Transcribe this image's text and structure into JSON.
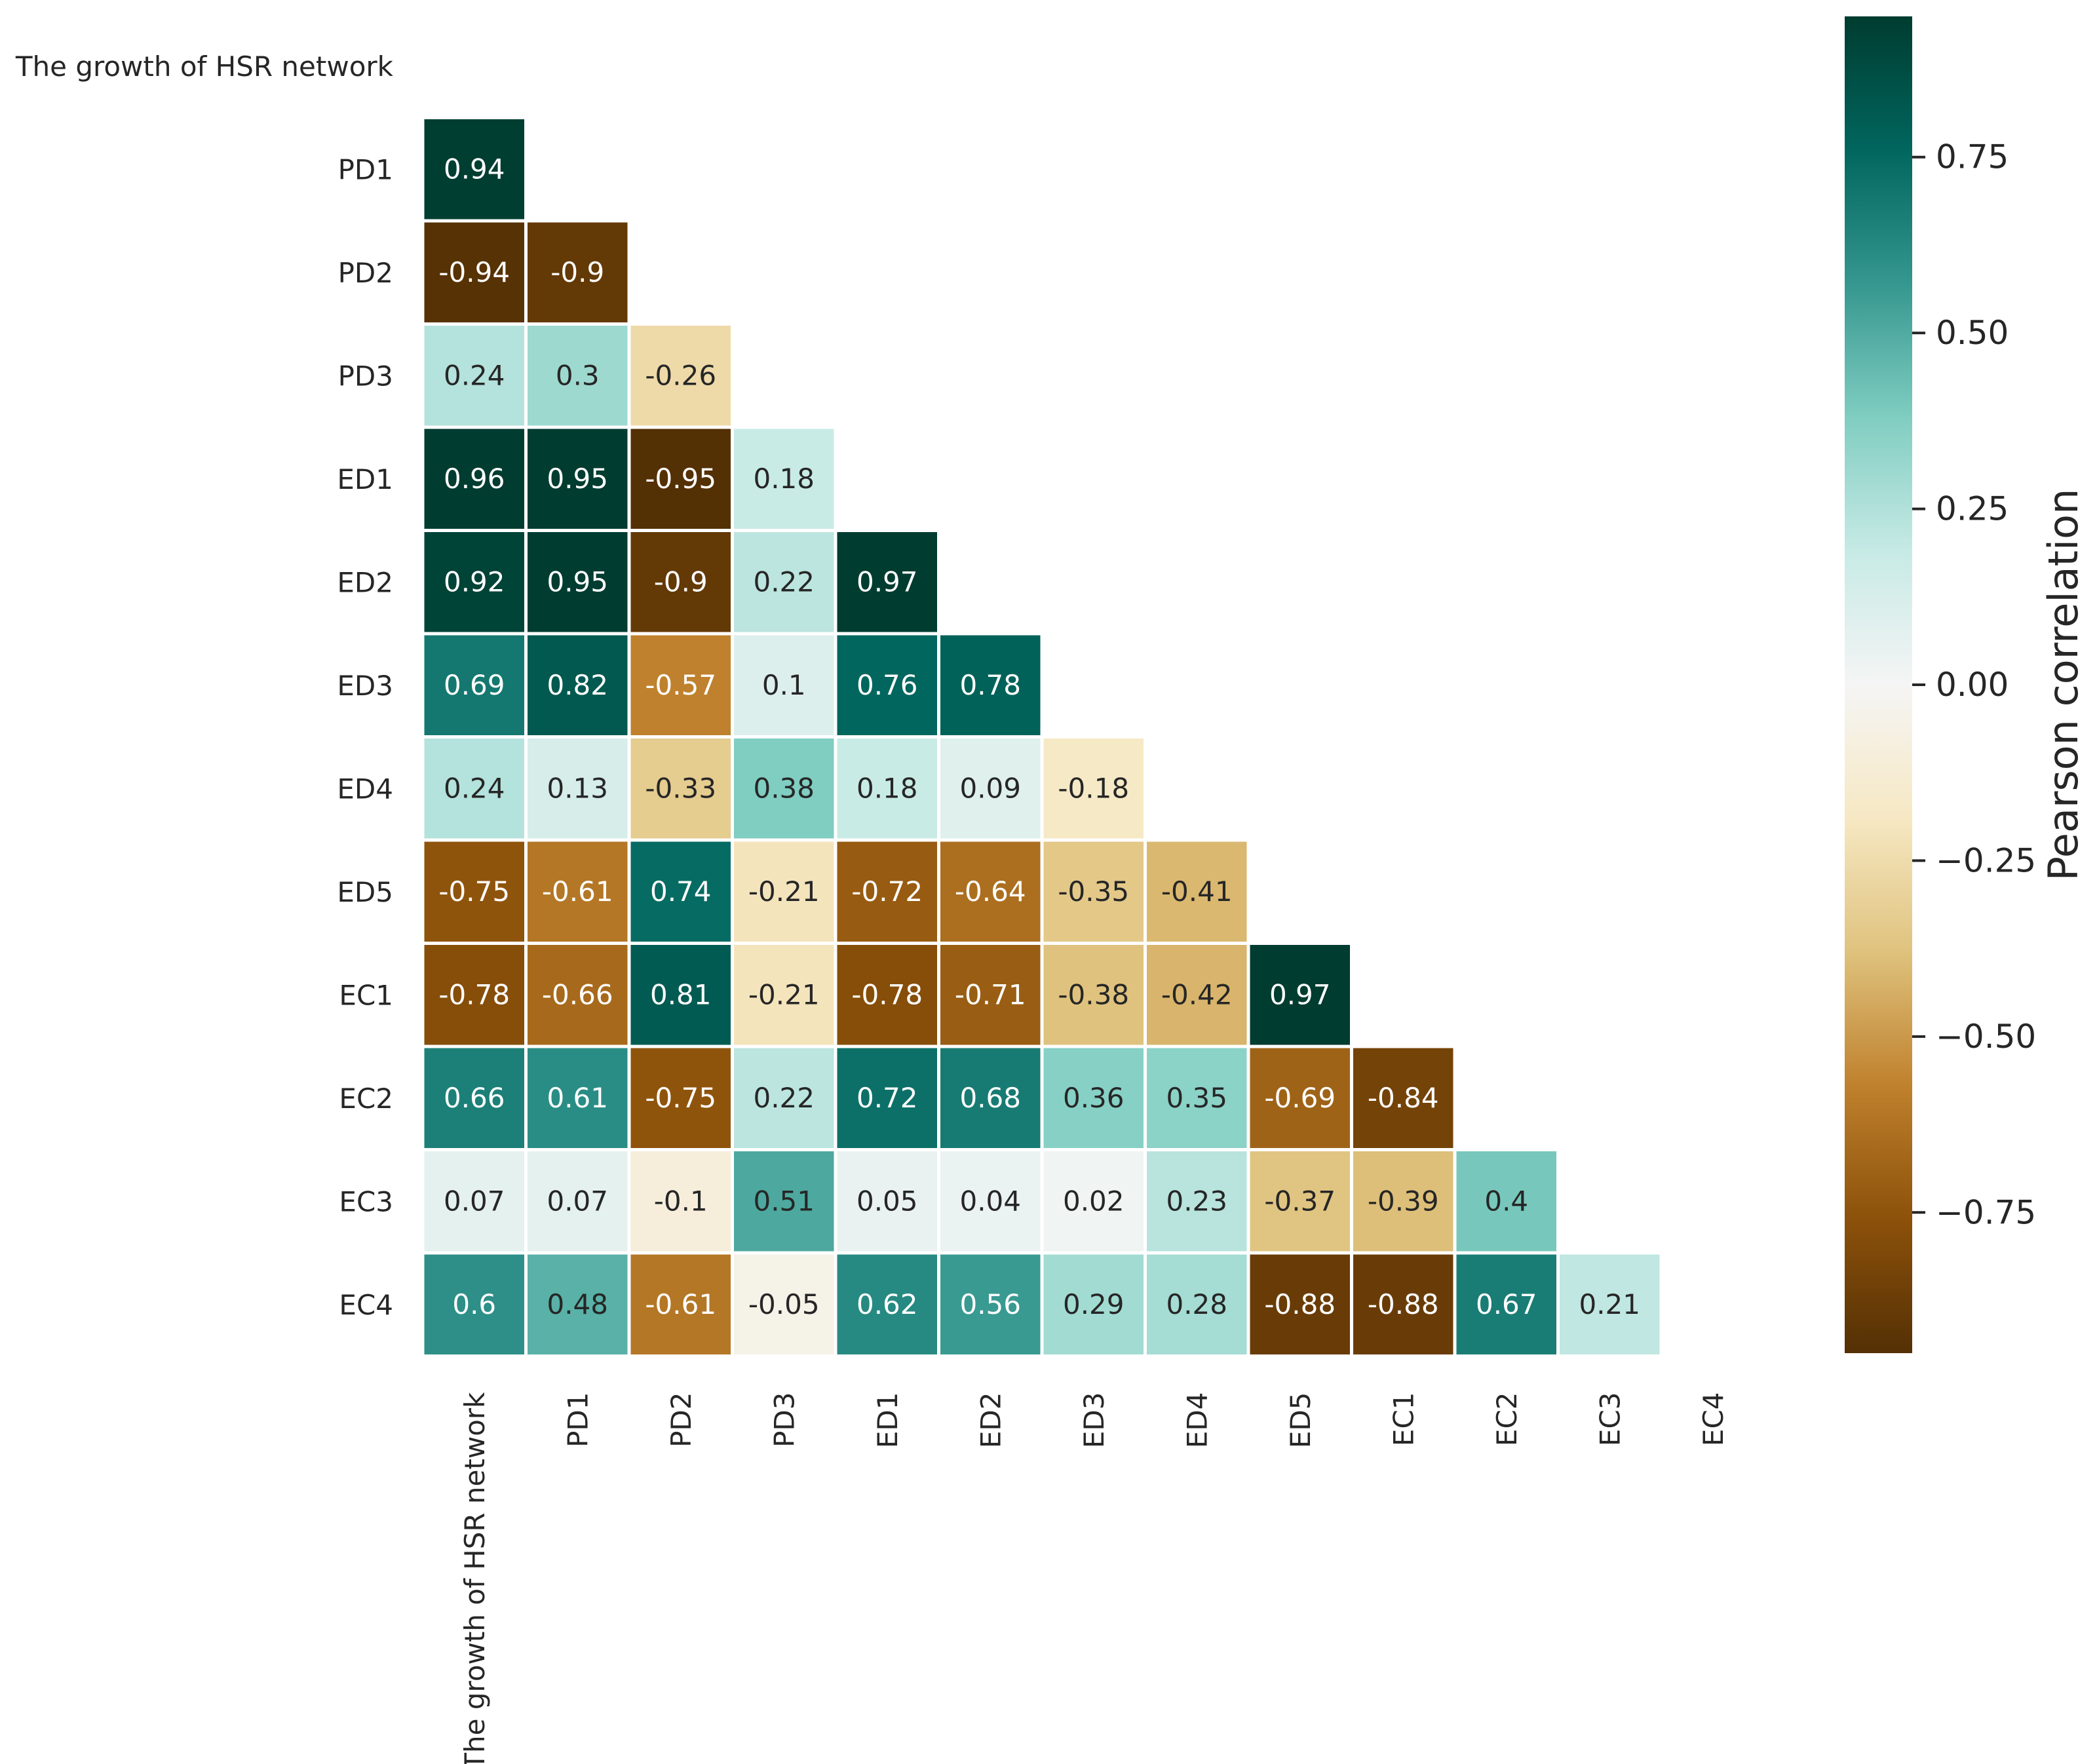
{
  "chart_data": {
    "type": "heatmap",
    "variables": [
      "The growth of HSR network",
      "PD1",
      "PD2",
      "PD3",
      "ED1",
      "ED2",
      "ED3",
      "ED4",
      "ED5",
      "EC1",
      "EC2",
      "EC3",
      "EC4"
    ],
    "y_labels": [
      "The growth of HSR network",
      "PD1",
      "PD2",
      "PD3",
      "ED1",
      "ED2",
      "ED3",
      "ED4",
      "ED5",
      "EC1",
      "EC2",
      "EC3",
      "EC4"
    ],
    "x_labels": [
      "The growth of HSR network",
      "PD1",
      "PD2",
      "PD3",
      "ED1",
      "ED2",
      "ED3",
      "ED4",
      "ED5",
      "EC1",
      "EC2",
      "EC3",
      "EC4"
    ],
    "lower_triangle": [
      [],
      [
        0.94
      ],
      [
        -0.94,
        -0.9
      ],
      [
        0.24,
        0.3,
        -0.26
      ],
      [
        0.96,
        0.95,
        -0.95,
        0.18
      ],
      [
        0.92,
        0.95,
        -0.9,
        0.22,
        0.97
      ],
      [
        0.69,
        0.82,
        -0.57,
        0.1,
        0.76,
        0.78
      ],
      [
        0.24,
        0.13,
        -0.33,
        0.38,
        0.18,
        0.09,
        -0.18
      ],
      [
        -0.75,
        -0.61,
        0.74,
        -0.21,
        -0.72,
        -0.64,
        -0.35,
        -0.41
      ],
      [
        -0.78,
        -0.66,
        0.81,
        -0.21,
        -0.78,
        -0.71,
        -0.38,
        -0.42,
        0.97
      ],
      [
        0.66,
        0.61,
        -0.75,
        0.22,
        0.72,
        0.68,
        0.36,
        0.35,
        -0.69,
        -0.84
      ],
      [
        0.07,
        0.07,
        -0.1,
        0.51,
        0.05,
        0.04,
        0.02,
        0.23,
        -0.37,
        -0.39,
        0.4
      ],
      [
        0.6,
        0.48,
        -0.61,
        -0.05,
        0.62,
        0.56,
        0.29,
        0.28,
        -0.88,
        -0.88,
        0.67,
        0.21
      ]
    ],
    "mask": "upper triangle including diagonal",
    "colormap": "BrBG",
    "color_range": [
      -0.95,
      0.95
    ],
    "colorbar": {
      "label": "Pearson correlation",
      "ticks": [
        0.75,
        0.5,
        0.25,
        0.0,
        -0.25,
        -0.5,
        -0.75
      ],
      "tick_labels": [
        "0.75",
        "0.50",
        "0.25",
        "0.00",
        "−0.25",
        "−0.50",
        "−0.75"
      ]
    }
  }
}
